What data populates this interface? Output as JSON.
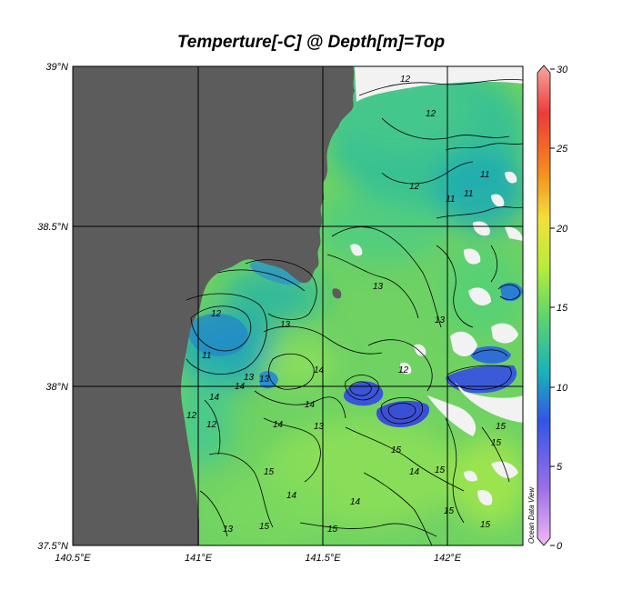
{
  "title": "Temperture[-C] @ Depth[m]=Top",
  "watermark": "Ocean Data View",
  "lon_labels": [
    "140.5°E",
    "141°E",
    "141.5°E",
    "142°E"
  ],
  "lat_labels": [
    "39°N",
    "38.5°N",
    "38°N",
    "37.5°N"
  ],
  "colorbar": {
    "min": 0,
    "max": 30,
    "tick_labels": [
      "30",
      "25",
      "20",
      "15",
      "10",
      "5",
      "0"
    ],
    "stops": [
      "#f2b8f2",
      "#9b6fe8",
      "#3355e6",
      "#18b2b8",
      "#5fd66a",
      "#b8ec3a",
      "#f2e03a",
      "#f48b1e",
      "#ec3a3a",
      "#f6a6a0"
    ]
  },
  "contour_labels": [
    "12",
    "12",
    "12",
    "11",
    "11",
    "11",
    "13",
    "12",
    "11",
    "13",
    "13",
    "13",
    "14",
    "14",
    "14",
    "13",
    "14",
    "14",
    "15",
    "14",
    "15",
    "14",
    "15",
    "15",
    "15",
    "15",
    "14",
    "13",
    "12",
    "12",
    "15",
    "13",
    "15",
    "15",
    "12"
  ],
  "colors": {
    "land": "#5c5c5c",
    "missing": "#f2f2f2",
    "sea_base": "#6fd263",
    "grid": "#000000"
  }
}
